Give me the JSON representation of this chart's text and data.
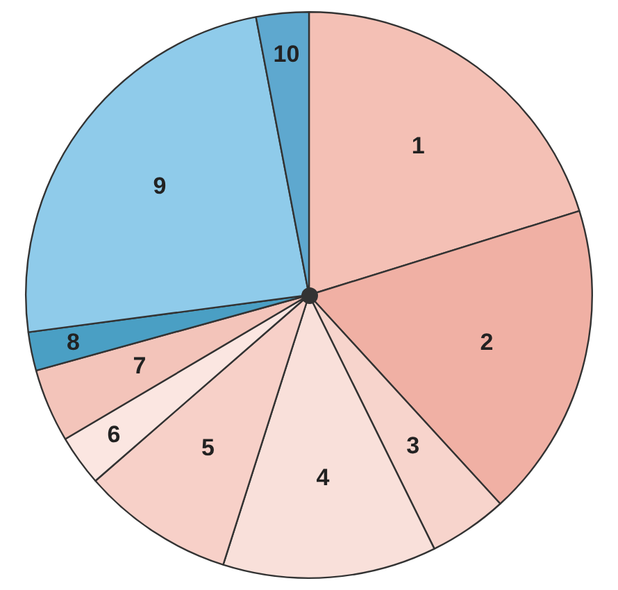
{
  "chart_data": {
    "type": "pie",
    "categories": [
      "1",
      "2",
      "3",
      "4",
      "5",
      "6",
      "7",
      "8",
      "9",
      "10"
    ],
    "values": [
      20.2,
      18.0,
      4.5,
      12.2,
      8.7,
      2.9,
      4.2,
      2.2,
      24.1,
      3.0
    ],
    "colors": [
      "#f4c0b5",
      "#f0b0a4",
      "#f7d4cc",
      "#f9e0da",
      "#f7d0c8",
      "#fbe6e1",
      "#f3c4ba",
      "#4a9fc4",
      "#8fcbea",
      "#5ea8cf"
    ],
    "legend": false
  }
}
